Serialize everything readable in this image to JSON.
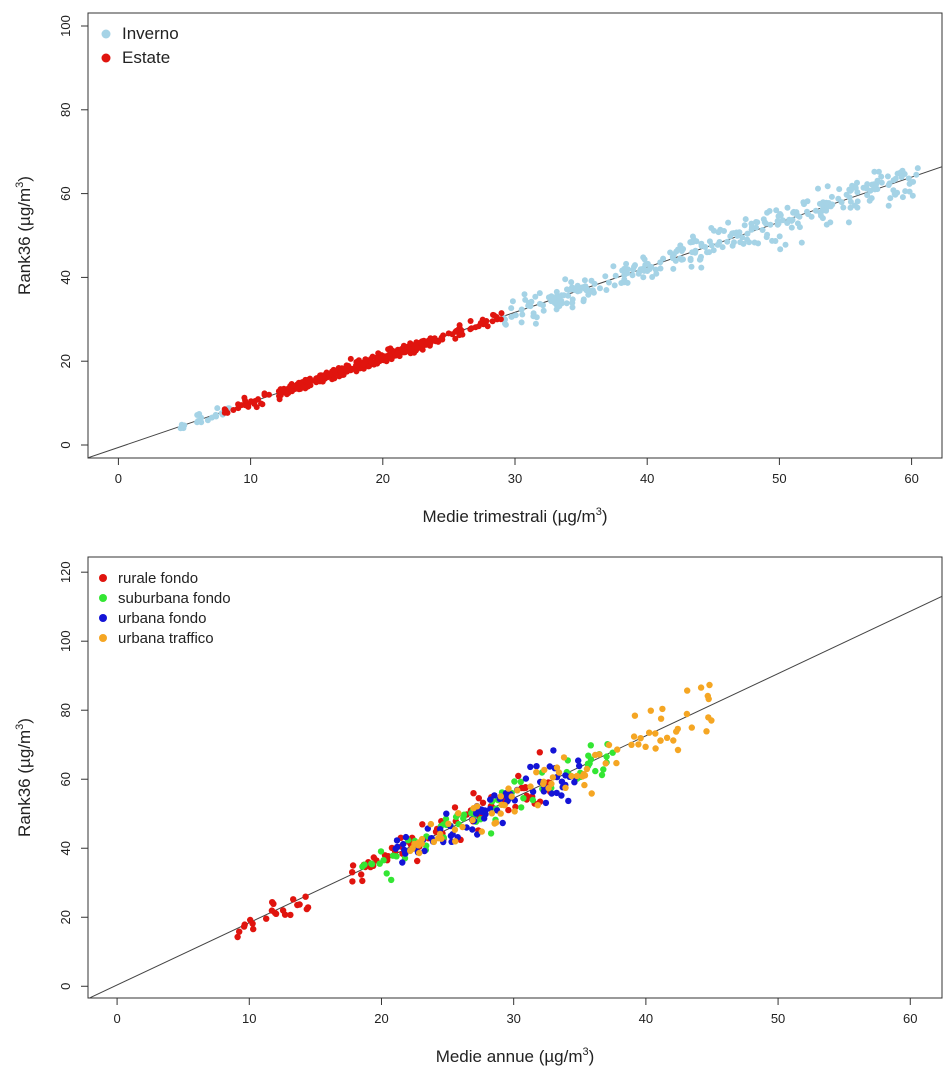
{
  "chart_data": [
    {
      "type": "scatter",
      "xlabel": "Medie trimestrali  (µg/m³)",
      "ylabel": "Rank36  (µg/m³)",
      "xlim": [
        -2.3,
        62.3
      ],
      "ylim": [
        -3.1,
        103.1
      ],
      "xticks": [
        0,
        10,
        20,
        30,
        40,
        50,
        60
      ],
      "yticks": [
        0,
        20,
        40,
        60,
        80,
        100
      ],
      "legend_position": "top-left",
      "regression_line": {
        "x": [
          -2.3,
          62.3
        ],
        "y": [
          -3.05,
          66.4
        ],
        "color": "#444444"
      },
      "series": [
        {
          "name": "Inverno",
          "color": "#a5d3e6",
          "generator": "winter",
          "n": 340,
          "x_range": [
            4.5,
            60.5
          ],
          "relation": "y = 1.075x - 0.6"
        },
        {
          "name": "Estate",
          "color": "#e0140e",
          "generator": "summer",
          "n": 300,
          "x_range": [
            8,
            29
          ],
          "relation": "y = 1.075x - 0.6"
        }
      ]
    },
    {
      "type": "scatter",
      "xlabel": "Medie annue  (µg/m³)",
      "ylabel": "Rank36  (µg/m³)",
      "xlim": [
        -2.2,
        62.4
      ],
      "ylim": [
        -3.4,
        124.4
      ],
      "xticks": [
        0,
        10,
        20,
        30,
        40,
        50,
        60
      ],
      "yticks": [
        0,
        20,
        40,
        60,
        80,
        100,
        120
      ],
      "legend_position": "top-left",
      "regression_line": {
        "x": [
          -2.2,
          62.4
        ],
        "y": [
          -3.6,
          113.0
        ],
        "color": "#444444"
      },
      "series": [
        {
          "name": "rurale fondo",
          "color": "#e0140e",
          "generator": "rural",
          "n": 95,
          "x_range": [
            8.5,
            33
          ],
          "relation": "y = 1.8x + 0.3"
        },
        {
          "name": "suburbana fondo",
          "color": "#33e633",
          "generator": "suburban",
          "n": 70,
          "x_range": [
            17,
            38
          ],
          "relation": "y = 1.8x + 0.3"
        },
        {
          "name": "urbana fondo",
          "color": "#1414d6",
          "generator": "urban",
          "n": 80,
          "x_range": [
            20,
            35
          ],
          "relation": "y = 1.8x + 0.3"
        },
        {
          "name": "urbana traffico",
          "color": "#f5a623",
          "generator": "traffic",
          "n": 90,
          "x_range": [
            22,
            45
          ],
          "relation": "y = 1.8x + 0.3"
        }
      ]
    }
  ]
}
